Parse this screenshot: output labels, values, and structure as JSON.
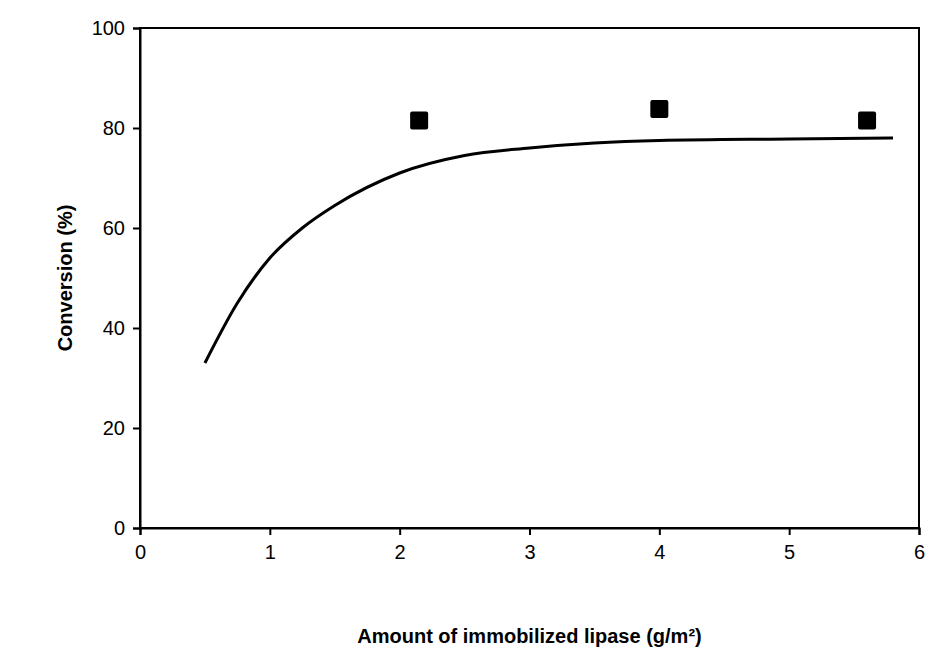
{
  "chart_data": {
    "type": "scatter",
    "x_label": "Amount of immobilized lipase (g/m²)",
    "y_label": "Conversion (%)",
    "xlim": [
      0,
      6
    ],
    "ylim": [
      0,
      100
    ],
    "xticks": [
      0,
      1,
      2,
      3,
      4,
      5,
      6
    ],
    "yticks": [
      0,
      20,
      40,
      60,
      80,
      100
    ],
    "grid": false,
    "series": [
      {
        "type": "scatter",
        "marker": "square",
        "color": "#000000",
        "x": [
          2.15,
          4.0,
          5.6
        ],
        "values": [
          81.5,
          83.8,
          81.5
        ]
      },
      {
        "type": "line",
        "line_style": "solid",
        "color": "#000000",
        "x": [
          0.5,
          0.75,
          1.0,
          1.25,
          1.5,
          2.0,
          2.5,
          3.0,
          3.5,
          4.0,
          5.0,
          5.8
        ],
        "values": [
          33,
          45,
          54,
          60,
          64.5,
          71,
          74.5,
          76,
          77,
          77.5,
          77.8,
          78
        ]
      }
    ]
  }
}
